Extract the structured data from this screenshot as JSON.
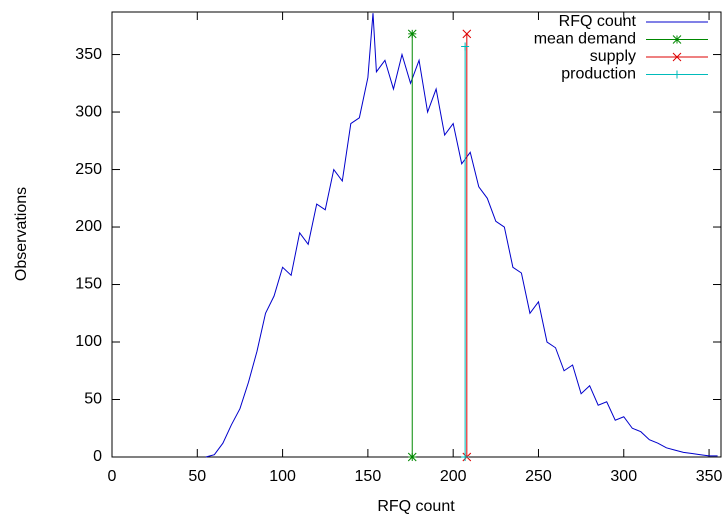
{
  "chart_data": {
    "type": "line",
    "xlabel": "RFQ count",
    "ylabel": "Observations",
    "xlim": [
      0,
      357
    ],
    "ylim": [
      0,
      387
    ],
    "xticks": [
      0,
      50,
      100,
      150,
      200,
      250,
      300,
      350
    ],
    "yticks": [
      0,
      50,
      100,
      150,
      200,
      250,
      300,
      350
    ],
    "legend": "top-right",
    "series": [
      {
        "name": "RFQ count",
        "color": "#0000cc",
        "marker": "none",
        "x": [
          55,
          60,
          65,
          70,
          75,
          80,
          85,
          90,
          95,
          100,
          105,
          110,
          115,
          120,
          125,
          130,
          135,
          140,
          145,
          150,
          153,
          155,
          160,
          165,
          170,
          175,
          180,
          185,
          190,
          195,
          200,
          205,
          210,
          215,
          220,
          225,
          230,
          235,
          240,
          245,
          250,
          255,
          260,
          265,
          270,
          275,
          280,
          285,
          290,
          295,
          300,
          305,
          310,
          315,
          320,
          325,
          330,
          335,
          340,
          345,
          350,
          355
        ],
        "values": [
          0,
          2,
          12,
          28,
          42,
          65,
          92,
          125,
          140,
          165,
          158,
          195,
          185,
          220,
          215,
          250,
          240,
          290,
          295,
          330,
          386,
          335,
          345,
          320,
          350,
          325,
          345,
          300,
          320,
          280,
          290,
          255,
          265,
          235,
          225,
          205,
          200,
          165,
          160,
          125,
          135,
          100,
          95,
          75,
          80,
          55,
          62,
          45,
          48,
          32,
          35,
          25,
          22,
          15,
          12,
          8,
          6,
          4,
          3,
          2,
          1,
          1
        ]
      },
      {
        "name": "mean demand",
        "color": "#008800",
        "marker": "star",
        "x": [
          176,
          176
        ],
        "values": [
          0,
          368
        ]
      },
      {
        "name": "supply",
        "color": "#dd0000",
        "marker": "cross",
        "x": [
          208,
          208
        ],
        "values": [
          0,
          368
        ]
      },
      {
        "name": "production",
        "color": "#00bbbb",
        "marker": "plus",
        "x": [
          207,
          207
        ],
        "values": [
          0,
          357
        ]
      }
    ]
  }
}
